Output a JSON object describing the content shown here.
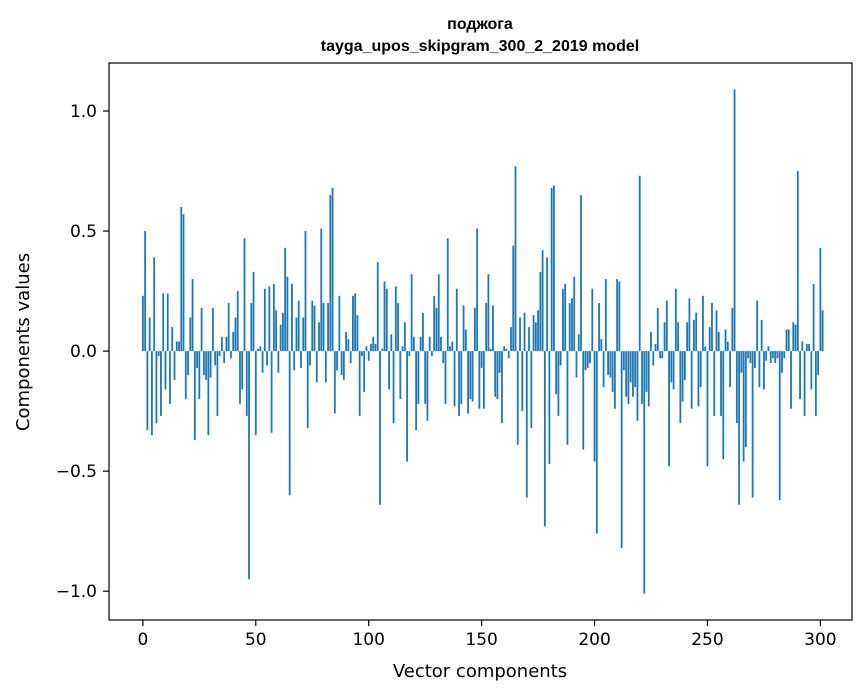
{
  "chart_data": {
    "type": "bar",
    "title_lines": [
      "поджога",
      "tayga_upos_skipgram_300_2_2019 model"
    ],
    "xlabel": "Vector components",
    "ylabel": "Components values",
    "xlim": [
      -15,
      314
    ],
    "ylim": [
      -1.12,
      1.2
    ],
    "xticks": [
      0,
      50,
      100,
      150,
      200,
      250,
      300
    ],
    "xtick_labels": [
      "0",
      "50",
      "100",
      "150",
      "200",
      "250",
      "300"
    ],
    "yticks": [
      -1.0,
      -0.5,
      0.0,
      0.5,
      1.0
    ],
    "ytick_labels": [
      "−1.0",
      "−0.5",
      "0.0",
      "0.5",
      "1.0"
    ],
    "bar_color": "#1f77b4",
    "grid": false,
    "series": [
      {
        "name": "поджога",
        "values": [
          0.23,
          0.5,
          -0.33,
          0.14,
          -0.35,
          0.39,
          -0.3,
          -0.02,
          -0.27,
          0.24,
          -0.16,
          0.24,
          -0.22,
          0.1,
          -0.12,
          0.04,
          0.04,
          0.6,
          0.57,
          -0.2,
          -0.1,
          0.14,
          0.3,
          -0.37,
          -0.07,
          -0.2,
          0.18,
          -0.1,
          -0.12,
          -0.35,
          -0.11,
          0.18,
          -0.06,
          -0.27,
          -0.02,
          0.06,
          -0.05,
          0.06,
          0.2,
          -0.03,
          0.08,
          0.14,
          0.25,
          -0.22,
          -0.16,
          0.47,
          -0.27,
          -0.95,
          0.2,
          0.33,
          -0.35,
          0.01,
          0.02,
          -0.09,
          0.26,
          -0.06,
          0.27,
          -0.34,
          0.28,
          0.17,
          -0.09,
          0.11,
          0.16,
          0.43,
          0.31,
          -0.6,
          0.28,
          -0.08,
          0.14,
          0.21,
          -0.07,
          0.14,
          0.5,
          -0.32,
          -0.06,
          0.21,
          0.19,
          -0.13,
          0.12,
          0.51,
          0.2,
          -0.13,
          0.2,
          0.65,
          0.68,
          -0.26,
          -0.08,
          0.23,
          -0.1,
          -0.12,
          0.08,
          0.05,
          -0.05,
          0.23,
          0.24,
          0.15,
          -0.27,
          -0.02,
          -0.17,
          0.02,
          -0.04,
          0.03,
          0.06,
          0.03,
          0.37,
          -0.64,
          0.01,
          0.29,
          0.26,
          -0.16,
          0.07,
          -0.3,
          0.27,
          0.2,
          -0.2,
          0.02,
          0.12,
          -0.46,
          -0.02,
          0.32,
          0.06,
          -0.33,
          -0.22,
          0.06,
          0.16,
          -0.22,
          -0.29,
          0.06,
          -0.02,
          0.23,
          0.18,
          0.32,
          0.06,
          -0.05,
          -0.22,
          0.47,
          0.02,
          0.04,
          -0.23,
          0.26,
          -0.27,
          -0.22,
          0.19,
          0.09,
          -0.26,
          -0.2,
          -0.21,
          0.18,
          0.51,
          -0.24,
          -0.07,
          -0.24,
          0.2,
          0.32,
          0.01,
          0.19,
          -0.19,
          -0.2,
          -0.09,
          -0.3,
          0.02,
          0.01,
          -0.03,
          0.1,
          0.44,
          0.77,
          -0.39,
          0.14,
          -0.25,
          0.16,
          -0.61,
          0.1,
          -0.32,
          0.15,
          0.12,
          0.17,
          0.33,
          0.42,
          -0.73,
          0.39,
          -0.47,
          0.68,
          0.69,
          -0.18,
          -0.27,
          -0.06,
          0.26,
          0.28,
          -0.39,
          0.2,
          0.22,
          0.31,
          -0.11,
          0.07,
          0.65,
          -0.41,
          -0.08,
          -0.07,
          -0.05,
          0.26,
          -0.46,
          -0.76,
          0.2,
          0.05,
          -0.15,
          0.3,
          -0.1,
          -0.11,
          -0.17,
          -0.24,
          0.3,
          0.29,
          -0.82,
          -0.08,
          -0.19,
          -0.22,
          -0.13,
          -0.19,
          -0.15,
          -0.29,
          0.73,
          -0.22,
          -1.01,
          -0.17,
          -0.23,
          0.08,
          -0.06,
          0.03,
          0.18,
          -0.03,
          -0.03,
          0.12,
          0.21,
          -0.48,
          -0.13,
          -0.16,
          0.26,
          0.12,
          -0.3,
          -0.21,
          -0.12,
          0.12,
          0.22,
          -0.24,
          0.13,
          0.16,
          -0.23,
          -0.15,
          0.23,
          0.02,
          -0.48,
          0.1,
          0.2,
          -0.27,
          0.17,
          0.08,
          -0.27,
          -0.45,
          0.09,
          0.04,
          -0.15,
          0.18,
          1.09,
          -0.3,
          -0.64,
          -0.09,
          -0.46,
          -0.4,
          -0.03,
          -0.05,
          -0.61,
          -0.07,
          0.21,
          -0.15,
          0.13,
          -0.16,
          -0.04,
          0.02,
          -0.05,
          -0.03,
          -0.05,
          -0.03,
          -0.62,
          -0.09,
          -0.03,
          0.09,
          0.09,
          -0.24,
          0.12,
          0.11,
          0.75,
          -0.2,
          0.04,
          -0.27,
          0.03,
          0.03,
          -0.16,
          0.28,
          -0.27,
          -0.1,
          0.43,
          0.17
        ]
      }
    ]
  }
}
